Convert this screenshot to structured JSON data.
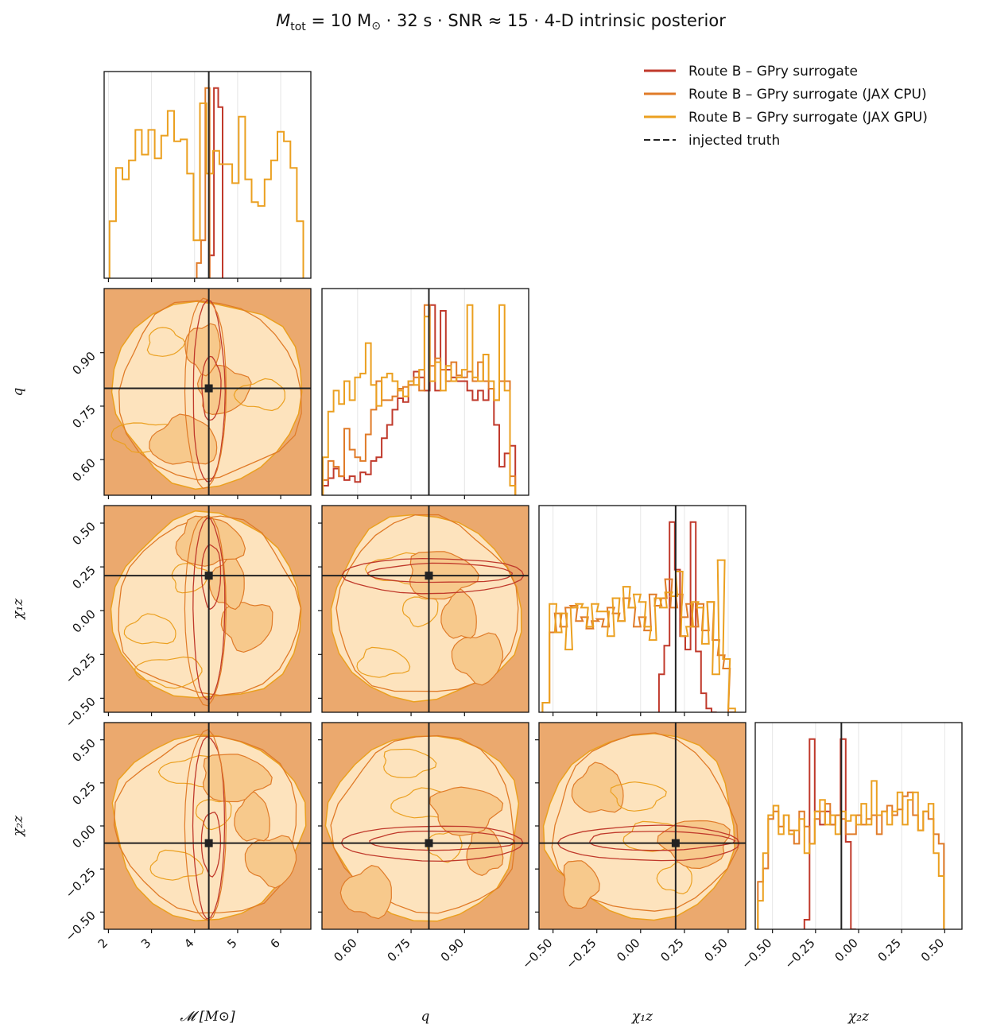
{
  "chart_data": {
    "type": "corner",
    "title": "M_tot = 10 M⊙  ·  32 s  ·  SNR ≈ 15  ·  4-D intrinsic posterior",
    "title_parts": {
      "mass": "M",
      "mass_sub": "tot",
      "mass_value": " = 10 M",
      "sun": "⊙",
      "rest": "   ·   32 s   ·   SNR ≈ 15   ·   4-D intrinsic posterior"
    },
    "parameters": [
      {
        "key": "mchirp",
        "label": "𝓜 [M⊙]",
        "range": [
          1.9,
          6.7
        ],
        "ticks": [
          2,
          3,
          4,
          5,
          6
        ],
        "tick_labels": [
          "2",
          "3",
          "4",
          "5",
          "6"
        ],
        "truth": 4.33
      },
      {
        "key": "q",
        "label": "q",
        "range": [
          0.5,
          1.08
        ],
        "ticks": [
          0.6,
          0.75,
          0.9
        ],
        "tick_labels": [
          "0.60",
          "0.75",
          "0.90"
        ],
        "truth": 0.8
      },
      {
        "key": "chi1z",
        "label": "χ₁z",
        "range": [
          -0.58,
          0.6
        ],
        "ticks": [
          -0.5,
          -0.25,
          0.0,
          0.25,
          0.5
        ],
        "tick_labels": [
          "−0.50",
          "−0.25",
          "0.00",
          "0.25",
          "0.50"
        ],
        "truth": 0.2
      },
      {
        "key": "chi2z",
        "label": "χ₂z",
        "range": [
          -0.6,
          0.6
        ],
        "ticks": [
          -0.5,
          -0.25,
          0.0,
          0.25,
          0.5
        ],
        "tick_labels": [
          "−0.50",
          "−0.25",
          "0.00",
          "0.25",
          "0.50"
        ],
        "truth": -0.1
      }
    ],
    "legend": {
      "placement": "top-right",
      "entries": [
        {
          "label": "Route B – GPry surrogate",
          "color": "#c0392b",
          "style": "solid"
        },
        {
          "label": "Route B – GPry surrogate (JAX CPU)",
          "color": "#e07b28",
          "style": "solid"
        },
        {
          "label": "Route B – GPry surrogate (JAX GPU)",
          "color": "#eba020",
          "style": "solid"
        },
        {
          "label": "injected truth",
          "color": "#222222",
          "style": "dashed"
        }
      ]
    },
    "colors": {
      "route_b": "#c0392b",
      "jax_cpu": "#e07b28",
      "jax_gpu": "#eba020",
      "truth": "#222222",
      "fill_outer": "#eba96e",
      "fill_inner": "#fde3bd",
      "fill_mid": "#f7c98c",
      "grid": "#e6e6e6"
    },
    "grid": true,
    "histograms": {
      "mchirp": {
        "route_b": {
          "x": [
            4.4,
            4.5,
            4.6
          ],
          "counts": [
            0.12,
            1.0,
            0.9
          ]
        },
        "jax_cpu": {
          "x": [
            4.1,
            4.2,
            4.3
          ],
          "counts": [
            0.08,
            0.2,
            1.0
          ]
        },
        "jax_gpu": {
          "x": [
            2.1,
            2.25,
            2.4,
            2.55,
            2.7,
            2.85,
            3.0,
            3.15,
            3.3,
            3.45,
            3.6,
            3.75,
            3.9,
            4.05,
            4.2,
            4.35,
            4.5,
            4.65,
            4.8,
            4.95,
            5.1,
            5.25,
            5.4,
            5.55,
            5.7,
            5.85,
            6.0,
            6.15,
            6.3,
            6.45
          ],
          "counts": [
            0.3,
            0.58,
            0.52,
            0.62,
            0.78,
            0.65,
            0.78,
            0.63,
            0.75,
            0.88,
            0.72,
            0.73,
            0.55,
            0.2,
            0.92,
            0.55,
            0.67,
            0.6,
            0.6,
            0.5,
            0.85,
            0.52,
            0.4,
            0.38,
            0.52,
            0.62,
            0.77,
            0.72,
            0.58,
            0.3
          ]
        }
      },
      "q": {
        "route_b": {
          "x": [
            0.51,
            0.525,
            0.54,
            0.555,
            0.57,
            0.585,
            0.6,
            0.615,
            0.63,
            0.645,
            0.66,
            0.675,
            0.69,
            0.705,
            0.72,
            0.735,
            0.75,
            0.765,
            0.78,
            0.795,
            0.81,
            0.825,
            0.84,
            0.855,
            0.87,
            0.885,
            0.9,
            0.915,
            0.93,
            0.945,
            0.96,
            0.975,
            0.99,
            1.005,
            1.02,
            1.035
          ],
          "counts": [
            0.05,
            0.09,
            0.14,
            0.1,
            0.08,
            0.1,
            0.07,
            0.12,
            0.11,
            0.18,
            0.2,
            0.3,
            0.37,
            0.45,
            0.51,
            0.49,
            0.6,
            0.65,
            0.62,
            0.55,
            1.0,
            0.55,
            0.97,
            0.66,
            0.62,
            0.6,
            0.6,
            0.55,
            0.5,
            0.55,
            0.5,
            0.56,
            0.37,
            0.15,
            0.22,
            0.26
          ]
        },
        "jax_cpu": {
          "x": [
            0.51,
            0.525,
            0.54,
            0.555,
            0.57,
            0.585,
            0.6,
            0.615,
            0.63,
            0.645,
            0.66,
            0.675,
            0.69,
            0.705,
            0.72,
            0.735,
            0.75,
            0.765,
            0.78,
            0.795,
            0.81,
            0.825,
            0.84,
            0.855,
            0.87,
            0.885,
            0.9,
            0.915,
            0.93,
            0.945,
            0.96,
            0.975,
            0.99,
            1.005,
            1.02,
            1.035
          ],
          "counts": [
            0.08,
            0.18,
            0.15,
            0.1,
            0.35,
            0.24,
            0.2,
            0.18,
            0.32,
            0.45,
            0.6,
            0.5,
            0.5,
            0.52,
            0.56,
            0.57,
            0.58,
            0.62,
            0.55,
            1.0,
            0.68,
            0.72,
            0.66,
            0.6,
            0.7,
            0.63,
            0.62,
            0.65,
            0.6,
            0.7,
            0.6,
            0.56,
            0.5,
            0.6,
            0.6,
            0.1
          ]
        },
        "jax_gpu": {
          "x": [
            0.51,
            0.525,
            0.54,
            0.555,
            0.57,
            0.585,
            0.6,
            0.615,
            0.63,
            0.645,
            0.66,
            0.675,
            0.69,
            0.705,
            0.72,
            0.735,
            0.75,
            0.765,
            0.78,
            0.795,
            0.81,
            0.825,
            0.84,
            0.855,
            0.87,
            0.885,
            0.9,
            0.915,
            0.93,
            0.945,
            0.96,
            0.975,
            0.99,
            1.005,
            1.02,
            1.035
          ],
          "counts": [
            0.2,
            0.44,
            0.55,
            0.48,
            0.6,
            0.5,
            0.62,
            0.64,
            0.8,
            0.58,
            0.47,
            0.62,
            0.64,
            0.6,
            0.55,
            0.52,
            0.6,
            0.58,
            0.66,
            0.94,
            0.6,
            0.7,
            0.55,
            0.68,
            0.6,
            0.62,
            0.66,
            1.0,
            0.62,
            0.6,
            0.74,
            0.6,
            0.5,
            1.0,
            0.55,
            0.05
          ]
        }
      },
      "chi1z": {
        "route_b": {
          "x": [
            0.12,
            0.15,
            0.18,
            0.21,
            0.24,
            0.27,
            0.3,
            0.33,
            0.36,
            0.39,
            0.42
          ],
          "counts": [
            0.2,
            0.35,
            1.0,
            0.75,
            0.4,
            0.33,
            1.0,
            0.32,
            0.1,
            0.02,
            0.0
          ]
        },
        "jax_cpu": {
          "x": [
            -0.54,
            -0.5,
            -0.47,
            -0.44,
            -0.41,
            -0.38,
            -0.35,
            -0.32,
            -0.29,
            -0.26,
            -0.23,
            -0.2,
            -0.17,
            -0.14,
            -0.11,
            -0.08,
            -0.05,
            -0.02,
            0.01,
            0.04,
            0.07,
            0.1,
            0.13,
            0.16,
            0.19,
            0.22,
            0.25,
            0.28,
            0.31,
            0.34,
            0.37,
            0.4,
            0.43,
            0.46,
            0.49,
            0.52
          ],
          "counts": [
            0.05,
            0.42,
            0.52,
            0.45,
            0.55,
            0.56,
            0.48,
            0.5,
            0.44,
            0.48,
            0.49,
            0.45,
            0.55,
            0.52,
            0.48,
            0.6,
            0.55,
            0.45,
            0.5,
            0.43,
            0.62,
            0.56,
            0.6,
            0.7,
            0.55,
            0.62,
            0.5,
            0.57,
            0.45,
            0.57,
            0.43,
            0.58,
            0.38,
            0.3,
            0.23,
            0.0
          ]
        },
        "jax_gpu": {
          "x": [
            -0.54,
            -0.5,
            -0.47,
            -0.44,
            -0.41,
            -0.38,
            -0.35,
            -0.32,
            -0.29,
            -0.26,
            -0.23,
            -0.2,
            -0.17,
            -0.14,
            -0.11,
            -0.08,
            -0.05,
            -0.02,
            0.01,
            0.04,
            0.07,
            0.1,
            0.13,
            0.16,
            0.19,
            0.22,
            0.25,
            0.28,
            0.31,
            0.34,
            0.37,
            0.4,
            0.43,
            0.46,
            0.49,
            0.52
          ],
          "counts": [
            0.05,
            0.57,
            0.42,
            0.52,
            0.33,
            0.55,
            0.57,
            0.55,
            0.45,
            0.57,
            0.53,
            0.53,
            0.4,
            0.6,
            0.48,
            0.66,
            0.55,
            0.62,
            0.58,
            0.45,
            0.38,
            0.6,
            0.55,
            0.63,
            0.61,
            0.74,
            0.4,
            0.45,
            0.58,
            0.55,
            0.36,
            0.58,
            0.2,
            0.8,
            0.28,
            0.02
          ]
        }
      },
      "chi2z": {
        "route_b": {
          "x": [
            -0.3,
            -0.27,
            -0.24,
            -0.21,
            -0.18,
            -0.15,
            -0.12,
            -0.09,
            -0.06,
            -0.03
          ],
          "counts": [
            0.05,
            1.0,
            0.62,
            0.55,
            0.62,
            0.55,
            0.6,
            1.0,
            0.46,
            0.0
          ]
        },
        "jax_cpu": {
          "x": [
            -0.57,
            -0.54,
            -0.51,
            -0.48,
            -0.45,
            -0.42,
            -0.39,
            -0.36,
            -0.33,
            -0.3,
            -0.27,
            -0.24,
            -0.21,
            -0.18,
            -0.15,
            -0.12,
            -0.09,
            -0.06,
            -0.03,
            0.0,
            0.03,
            0.06,
            0.09,
            0.12,
            0.15,
            0.18,
            0.21,
            0.24,
            0.27,
            0.3,
            0.33,
            0.36,
            0.39,
            0.42,
            0.45,
            0.48
          ],
          "counts": [
            0.25,
            0.32,
            0.58,
            0.62,
            0.54,
            0.6,
            0.52,
            0.45,
            0.62,
            0.54,
            0.45,
            0.58,
            0.62,
            0.66,
            0.55,
            0.6,
            0.58,
            0.5,
            0.5,
            0.6,
            0.55,
            0.58,
            0.6,
            0.5,
            0.62,
            0.65,
            0.6,
            0.63,
            0.7,
            0.72,
            0.6,
            0.52,
            0.62,
            0.58,
            0.5,
            0.45
          ]
        },
        "jax_gpu": {
          "x": [
            -0.57,
            -0.54,
            -0.51,
            -0.48,
            -0.45,
            -0.42,
            -0.39,
            -0.36,
            -0.33,
            -0.3,
            -0.27,
            -0.24,
            -0.21,
            -0.18,
            -0.15,
            -0.12,
            -0.09,
            -0.06,
            -0.03,
            0.0,
            0.03,
            0.06,
            0.09,
            0.12,
            0.15,
            0.18,
            0.21,
            0.24,
            0.27,
            0.3,
            0.33,
            0.36,
            0.39,
            0.42,
            0.45,
            0.48
          ],
          "counts": [
            0.15,
            0.4,
            0.6,
            0.65,
            0.5,
            0.6,
            0.5,
            0.52,
            0.58,
            0.4,
            0.45,
            0.62,
            0.68,
            0.55,
            0.6,
            0.5,
            0.62,
            0.57,
            0.6,
            0.55,
            0.66,
            0.55,
            0.78,
            0.6,
            0.62,
            0.55,
            0.62,
            0.72,
            0.55,
            0.68,
            0.72,
            0.52,
            0.62,
            0.66,
            0.4,
            0.28
          ]
        }
      }
    }
  }
}
